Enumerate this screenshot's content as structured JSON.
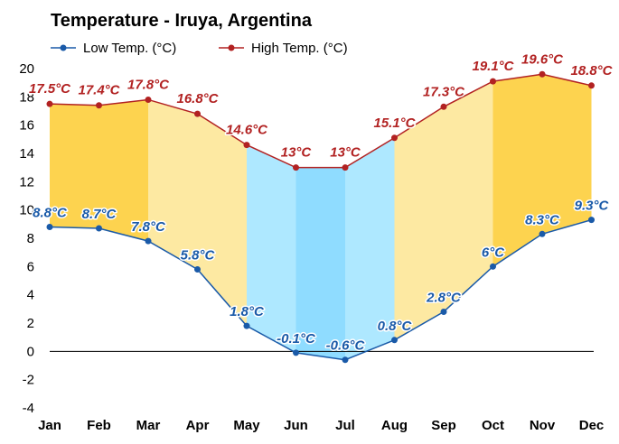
{
  "chart_data": {
    "type": "line",
    "title": "Temperature - Iruya, Argentina",
    "categories": [
      "Jan",
      "Feb",
      "Mar",
      "Apr",
      "May",
      "Jun",
      "Jul",
      "Aug",
      "Sep",
      "Oct",
      "Nov",
      "Dec"
    ],
    "series": [
      {
        "name": "Low Temp. (°C)",
        "values": [
          8.8,
          8.7,
          7.8,
          5.8,
          1.8,
          -0.1,
          -0.6,
          0.8,
          2.8,
          6,
          8.3,
          9.3
        ],
        "labels": [
          "8.8°C",
          "8.7°C",
          "7.8°C",
          "5.8°C",
          "1.8°C",
          "-0.1°C",
          "-0.6°C",
          "0.8°C",
          "2.8°C",
          "6°C",
          "8.3°C",
          "9.3°C"
        ],
        "color": "#1a5aa8"
      },
      {
        "name": "High Temp. (°C)",
        "values": [
          17.5,
          17.4,
          17.8,
          16.8,
          14.6,
          13,
          13,
          15.1,
          17.3,
          19.1,
          19.6,
          18.8
        ],
        "labels": [
          "17.5°C",
          "17.4°C",
          "17.8°C",
          "16.8°C",
          "14.6°C",
          "13°C",
          "13°C",
          "15.1°C",
          "17.3°C",
          "19.1°C",
          "19.6°C",
          "18.8°C"
        ],
        "color": "#b22222"
      }
    ],
    "y_ticks": [
      "20",
      "18",
      "16",
      "14",
      "12",
      "10",
      "8",
      "6",
      "4",
      "2",
      "0",
      "-2",
      "-4"
    ],
    "ylim": [
      -4,
      20
    ],
    "grid": false,
    "legend": "top-left",
    "band_colors": [
      "#fdd34f",
      "#fdd34f",
      "#fde9a2",
      "#fde9a2",
      "#aee8ff",
      "#8fdcff",
      "#aee8ff",
      "#fde9a2",
      "#fde9a2",
      "#fdd34f",
      "#fdd34f",
      "#fdd34f"
    ],
    "zero_line_color": "#000000"
  }
}
